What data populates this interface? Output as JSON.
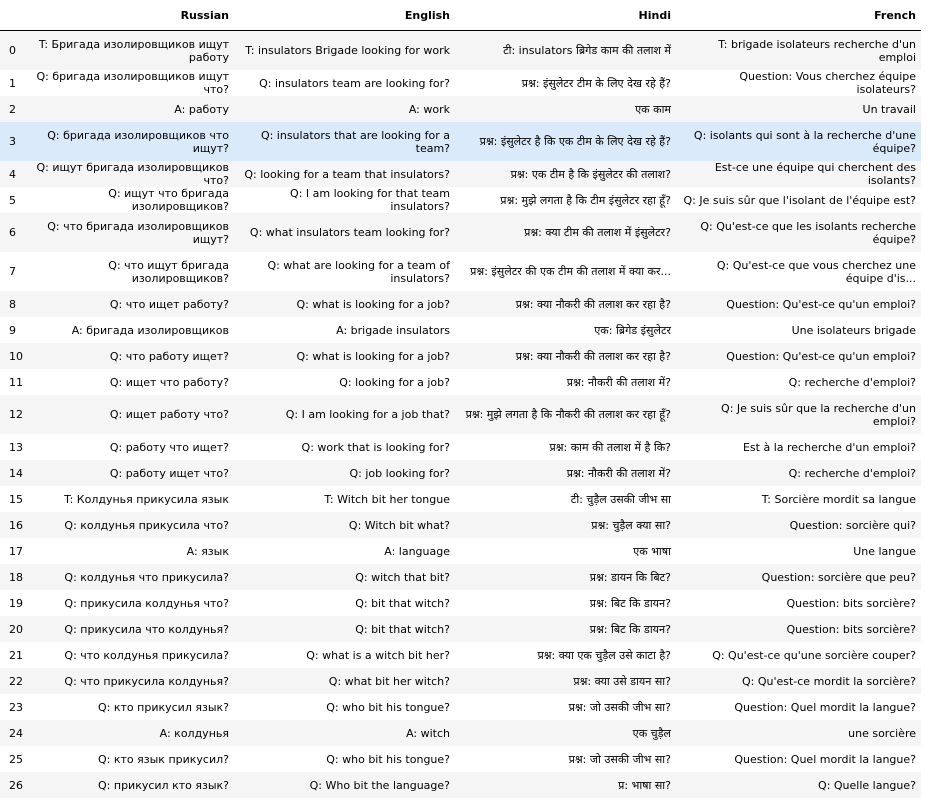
{
  "columns": {
    "index": "",
    "russian": "Russian",
    "english": "English",
    "hindi": "Hindi",
    "french": "French"
  },
  "rows": [
    {
      "i": "0",
      "ru": "T: Бригада изолировщиков ищут работу",
      "en": "T: insulators Brigade looking for work",
      "hi": "टी: insulators ब्रिगेड काम की तलाश में",
      "fr": "T: brigade isolateurs recherche d'un emploi"
    },
    {
      "i": "1",
      "ru": "Q: бригада изолировщиков ищут что?",
      "en": "Q: insulators team are looking for?",
      "hi": "प्रश्न: इंसुलेटर टीम के लिए देख रहे हैं?",
      "fr": "Question: Vous cherchez équipe isolateurs?"
    },
    {
      "i": "2",
      "ru": "A: работу",
      "en": "A: work",
      "hi": "एक काम",
      "fr": "Un travail"
    },
    {
      "i": "3",
      "ru": "Q: бригада изолировщиков что ищут?",
      "en": "Q: insulators that are looking for a team?",
      "hi": "प्रश्न: इंसुलेटर है कि एक टीम के लिए देख रहे हैं?",
      "fr": "Q: isolants qui sont à la recherche d'une équipe?"
    },
    {
      "i": "4",
      "ru": "Q: ищут бригада изолировщиков что?",
      "en": "Q: looking for a team that insulators?",
      "hi": "प्रश्न: एक टीम है कि इंसुलेटर की तलाश?",
      "fr": "Est-ce une équipe qui cherchent des isolants?"
    },
    {
      "i": "5",
      "ru": "Q: ищут что бригада изолировщиков?",
      "en": "Q: I am looking for that team insulators?",
      "hi": "प्रश्न: मुझे लगता है कि टीम इंसुलेटर रहा हूँ?",
      "fr": "Q: Je suis sûr que l'isolant de l'équipe est?"
    },
    {
      "i": "6",
      "ru": "Q: что бригада изолировщиков ищут?",
      "en": "Q: what insulators team looking for?",
      "hi": "प्रश्न: क्या टीम की तलाश में इंसुलेटर?",
      "fr": "Q: Qu'est-ce que les isolants recherche équipe?"
    },
    {
      "i": "7",
      "ru": "Q: что ищут бригада изолировщиков?",
      "en": "Q: what are looking for a team of insulators?",
      "hi": "प्रश्न: इंसुलेटर की एक टीम की तलाश में क्या कर...",
      "fr": "Q: Qu'est-ce que vous cherchez une équipe d'is..."
    },
    {
      "i": "8",
      "ru": "Q: что ищет работу?",
      "en": "Q: what is looking for a job?",
      "hi": "प्रश्न: क्या नौकरी की तलाश कर रहा है?",
      "fr": "Question: Qu'est-ce qu'un emploi?"
    },
    {
      "i": "9",
      "ru": "A: бригада изолировщиков",
      "en": "A: brigade insulators",
      "hi": "एक: ब्रिगेड इंसुलेटर",
      "fr": "Une isolateurs brigade"
    },
    {
      "i": "10",
      "ru": "Q: что работу ищет?",
      "en": "Q: what is looking for a job?",
      "hi": "प्रश्न: क्या नौकरी की तलाश कर रहा है?",
      "fr": "Question: Qu'est-ce qu'un emploi?"
    },
    {
      "i": "11",
      "ru": "Q: ищет что работу?",
      "en": "Q: looking for a job?",
      "hi": "प्रश्न: नौकरी की तलाश में?",
      "fr": "Q: recherche d'emploi?"
    },
    {
      "i": "12",
      "ru": "Q: ищет работу что?",
      "en": "Q: I am looking for a job that?",
      "hi": "प्रश्न: मुझे लगता है कि नौकरी की तलाश कर रहा हूँ?",
      "fr": "Q: Je suis sûr que la recherche d'un emploi?"
    },
    {
      "i": "13",
      "ru": "Q: работу что ищет?",
      "en": "Q: work that is looking for?",
      "hi": "प्रश्न: काम की तलाश में है कि?",
      "fr": "Est à la recherche d'un emploi?"
    },
    {
      "i": "14",
      "ru": "Q: работу ищет что?",
      "en": "Q: job looking for?",
      "hi": "प्रश्न: नौकरी की तलाश में?",
      "fr": "Q: recherche d'emploi?"
    },
    {
      "i": "15",
      "ru": "T: Колдунья прикусила язык",
      "en": "T: Witch bit her tongue",
      "hi": "टी: चुड़ैल उसकी जीभ सा",
      "fr": "T: Sorcière mordit sa langue"
    },
    {
      "i": "16",
      "ru": "Q: колдунья прикусила что?",
      "en": "Q: Witch bit what?",
      "hi": "प्रश्न: चुड़ैल क्या सा?",
      "fr": "Question: sorcière qui?"
    },
    {
      "i": "17",
      "ru": "A: язык",
      "en": "A: language",
      "hi": "एक भाषा",
      "fr": "Une langue"
    },
    {
      "i": "18",
      "ru": "Q: колдунья что прикусила?",
      "en": "Q: witch that bit?",
      "hi": "प्रश्न: डायन कि बिट?",
      "fr": "Question: sorcière que peu?"
    },
    {
      "i": "19",
      "ru": "Q: прикусила колдунья что?",
      "en": "Q: bit that witch?",
      "hi": "प्रश्न: बिट कि डायन?",
      "fr": "Question: bits sorcière?"
    },
    {
      "i": "20",
      "ru": "Q: прикусила что колдунья?",
      "en": "Q: bit that witch?",
      "hi": "प्रश्न: बिट कि डायन?",
      "fr": "Question: bits sorcière?"
    },
    {
      "i": "21",
      "ru": "Q: что колдунья прикусила?",
      "en": "Q: what is a witch bit her?",
      "hi": "प्रश्न: क्या एक चुड़ैल उसे काटा है?",
      "fr": "Q: Qu'est-ce qu'une sorcière couper?"
    },
    {
      "i": "22",
      "ru": "Q: что прикусила колдунья?",
      "en": "Q: what bit her witch?",
      "hi": "प्रश्न: क्या उसे डायन सा?",
      "fr": "Q: Qu'est-ce mordit la sorcière?"
    },
    {
      "i": "23",
      "ru": "Q: кто прикусил язык?",
      "en": "Q: who bit his tongue?",
      "hi": "प्रश्न: जो उसकी जीभ सा?",
      "fr": "Question: Quel mordit la langue?"
    },
    {
      "i": "24",
      "ru": "A: колдунья",
      "en": "A: witch",
      "hi": "एक चुड़ैल",
      "fr": "une sorcière"
    },
    {
      "i": "25",
      "ru": "Q: кто язык прикусил?",
      "en": "Q: who bit his tongue?",
      "hi": "प्रश्न: जो उसकी जीभ सा?",
      "fr": "Question: Quel mordit la langue?"
    },
    {
      "i": "26",
      "ru": "Q: прикусил кто язык?",
      "en": "Q: Who bit the language?",
      "hi": "प्र: भाषा सा?",
      "fr": "Q: Quelle langue?"
    }
  ]
}
